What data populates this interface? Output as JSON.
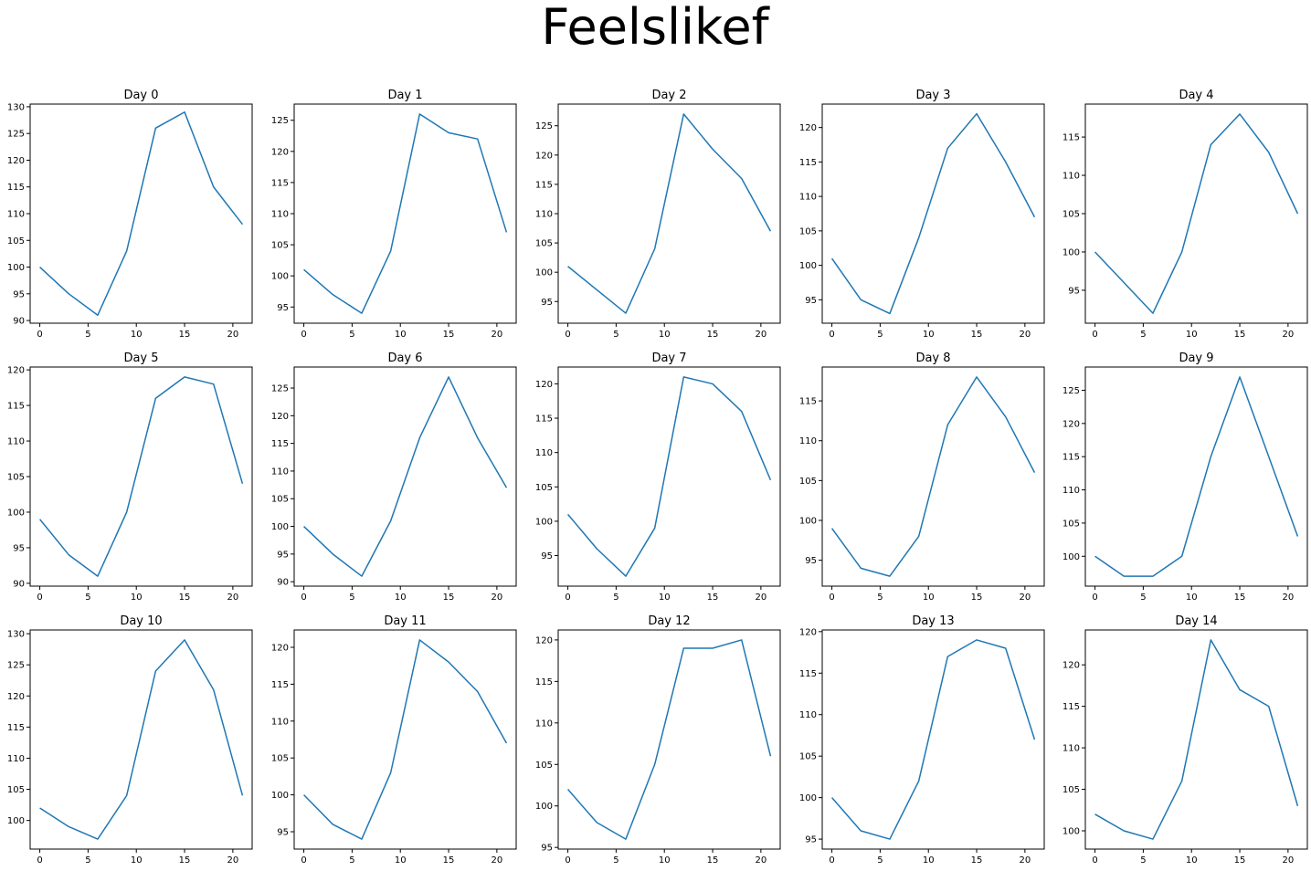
{
  "figure": {
    "title": "Feelslikef"
  },
  "chart_data": [
    {
      "type": "line",
      "title": "Day 0",
      "x": [
        0,
        3,
        6,
        9,
        12,
        15,
        18,
        21
      ],
      "y": [
        100,
        95,
        91,
        103,
        126,
        129,
        115,
        108
      ],
      "xlim": [
        -1,
        22
      ],
      "ylim": [
        89.5,
        130.5
      ],
      "xticks": [
        0,
        5,
        10,
        15,
        20
      ],
      "yticks": [
        90,
        95,
        100,
        105,
        110,
        115,
        120,
        125,
        130
      ]
    },
    {
      "type": "line",
      "title": "Day 1",
      "x": [
        0,
        3,
        6,
        9,
        12,
        15,
        18,
        21
      ],
      "y": [
        101,
        97,
        94,
        104,
        126,
        123,
        122,
        107
      ],
      "xlim": [
        -1,
        22
      ],
      "ylim": [
        92.4,
        127.6
      ],
      "xticks": [
        0,
        5,
        10,
        15,
        20
      ],
      "yticks": [
        95,
        100,
        105,
        110,
        115,
        120,
        125
      ]
    },
    {
      "type": "line",
      "title": "Day 2",
      "x": [
        0,
        3,
        6,
        9,
        12,
        15,
        18,
        21
      ],
      "y": [
        101,
        97,
        93,
        104,
        127,
        121,
        116,
        107
      ],
      "xlim": [
        -1,
        22
      ],
      "ylim": [
        91.3,
        128.7
      ],
      "xticks": [
        0,
        5,
        10,
        15,
        20
      ],
      "yticks": [
        95,
        100,
        105,
        110,
        115,
        120,
        125
      ]
    },
    {
      "type": "line",
      "title": "Day 3",
      "x": [
        0,
        3,
        6,
        9,
        12,
        15,
        18,
        21
      ],
      "y": [
        101,
        95,
        93,
        104,
        117,
        122,
        115,
        107
      ],
      "xlim": [
        -1,
        22
      ],
      "ylim": [
        91.6,
        123.4
      ],
      "xticks": [
        0,
        5,
        10,
        15,
        20
      ],
      "yticks": [
        95,
        100,
        105,
        110,
        115,
        120
      ]
    },
    {
      "type": "line",
      "title": "Day 4",
      "x": [
        0,
        3,
        6,
        9,
        12,
        15,
        18,
        21
      ],
      "y": [
        100,
        96,
        92,
        100,
        114,
        118,
        113,
        105
      ],
      "xlim": [
        -1,
        22
      ],
      "ylim": [
        90.7,
        119.3
      ],
      "xticks": [
        0,
        5,
        10,
        15,
        20
      ],
      "yticks": [
        95,
        100,
        105,
        110,
        115
      ]
    },
    {
      "type": "line",
      "title": "Day 5",
      "x": [
        0,
        3,
        6,
        9,
        12,
        15,
        18,
        21
      ],
      "y": [
        99,
        94,
        91,
        100,
        116,
        119,
        118,
        104
      ],
      "xlim": [
        -1,
        22
      ],
      "ylim": [
        89.6,
        120.4
      ],
      "xticks": [
        0,
        5,
        10,
        15,
        20
      ],
      "yticks": [
        90,
        95,
        100,
        105,
        110,
        115,
        120
      ]
    },
    {
      "type": "line",
      "title": "Day 6",
      "x": [
        0,
        3,
        6,
        9,
        12,
        15,
        18,
        21
      ],
      "y": [
        100,
        95,
        91,
        101,
        116,
        127,
        116,
        107
      ],
      "xlim": [
        -1,
        22
      ],
      "ylim": [
        89.2,
        128.8
      ],
      "xticks": [
        0,
        5,
        10,
        15,
        20
      ],
      "yticks": [
        90,
        95,
        100,
        105,
        110,
        115,
        120,
        125
      ]
    },
    {
      "type": "line",
      "title": "Day 7",
      "x": [
        0,
        3,
        6,
        9,
        12,
        15,
        18,
        21
      ],
      "y": [
        101,
        96,
        92,
        99,
        121,
        120,
        116,
        106
      ],
      "xlim": [
        -1,
        22
      ],
      "ylim": [
        90.55,
        122.45
      ],
      "xticks": [
        0,
        5,
        10,
        15,
        20
      ],
      "yticks": [
        95,
        100,
        105,
        110,
        115,
        120
      ]
    },
    {
      "type": "line",
      "title": "Day 8",
      "x": [
        0,
        3,
        6,
        9,
        12,
        15,
        18,
        21
      ],
      "y": [
        99,
        94,
        93,
        98,
        112,
        118,
        113,
        106
      ],
      "xlim": [
        -1,
        22
      ],
      "ylim": [
        91.75,
        119.25
      ],
      "xticks": [
        0,
        5,
        10,
        15,
        20
      ],
      "yticks": [
        95,
        100,
        105,
        110,
        115
      ]
    },
    {
      "type": "line",
      "title": "Day 9",
      "x": [
        0,
        3,
        6,
        9,
        12,
        15,
        18,
        21
      ],
      "y": [
        100,
        97,
        97,
        100,
        115,
        127,
        115,
        103
      ],
      "xlim": [
        -1,
        22
      ],
      "ylim": [
        95.5,
        128.5
      ],
      "xticks": [
        0,
        5,
        10,
        15,
        20
      ],
      "yticks": [
        100,
        105,
        110,
        115,
        120,
        125
      ]
    },
    {
      "type": "line",
      "title": "Day 10",
      "x": [
        0,
        3,
        6,
        9,
        12,
        15,
        18,
        21
      ],
      "y": [
        102,
        99,
        97,
        104,
        124,
        129,
        121,
        104
      ],
      "xlim": [
        -1,
        22
      ],
      "ylim": [
        95.4,
        130.6
      ],
      "xticks": [
        0,
        5,
        10,
        15,
        20
      ],
      "yticks": [
        100,
        105,
        110,
        115,
        120,
        125,
        130
      ]
    },
    {
      "type": "line",
      "title": "Day 11",
      "x": [
        0,
        3,
        6,
        9,
        12,
        15,
        18,
        21
      ],
      "y": [
        100,
        96,
        94,
        103,
        121,
        118,
        114,
        107
      ],
      "xlim": [
        -1,
        22
      ],
      "ylim": [
        92.65,
        122.35
      ],
      "xticks": [
        0,
        5,
        10,
        15,
        20
      ],
      "yticks": [
        95,
        100,
        105,
        110,
        115,
        120
      ]
    },
    {
      "type": "line",
      "title": "Day 12",
      "x": [
        0,
        3,
        6,
        9,
        12,
        15,
        18,
        21
      ],
      "y": [
        102,
        98,
        96,
        105,
        119,
        119,
        120,
        106
      ],
      "xlim": [
        -1,
        22
      ],
      "ylim": [
        94.8,
        121.2
      ],
      "xticks": [
        0,
        5,
        10,
        15,
        20
      ],
      "yticks": [
        95,
        100,
        105,
        110,
        115,
        120
      ]
    },
    {
      "type": "line",
      "title": "Day 13",
      "x": [
        0,
        3,
        6,
        9,
        12,
        15,
        18,
        21
      ],
      "y": [
        100,
        96,
        95,
        102,
        117,
        119,
        118,
        107
      ],
      "xlim": [
        -1,
        22
      ],
      "ylim": [
        93.8,
        120.2
      ],
      "xticks": [
        0,
        5,
        10,
        15,
        20
      ],
      "yticks": [
        95,
        100,
        105,
        110,
        115,
        120
      ]
    },
    {
      "type": "line",
      "title": "Day 14",
      "x": [
        0,
        3,
        6,
        9,
        12,
        15,
        18,
        21
      ],
      "y": [
        102,
        100,
        99,
        106,
        123,
        117,
        115,
        103
      ],
      "xlim": [
        -1,
        22
      ],
      "ylim": [
        97.8,
        124.2
      ],
      "xticks": [
        0,
        5,
        10,
        15,
        20
      ],
      "yticks": [
        100,
        105,
        110,
        115,
        120
      ]
    }
  ]
}
